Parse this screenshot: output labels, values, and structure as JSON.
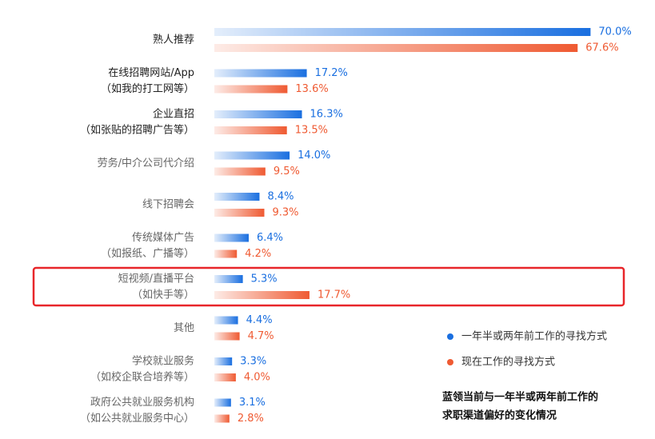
{
  "chart_data": {
    "type": "bar",
    "orientation": "horizontal",
    "title": [
      "蓝领当前与一年半或两年前工作的",
      "求职渠道偏好的变化情况"
    ],
    "categories": [
      [
        "熟人推荐"
      ],
      [
        "在线招聘网站/App",
        "（如我的打工网等）"
      ],
      [
        "企业直招",
        "（如张贴的招聘广告等）"
      ],
      [
        "劳务/中介公司代介绍"
      ],
      [
        "线下招聘会"
      ],
      [
        "传统媒体广告",
        "（如报纸、广播等）"
      ],
      [
        "短视频/直播平台",
        "（如快手等）"
      ],
      [
        "其他"
      ],
      [
        "学校就业服务",
        "（如校企联合培养等）"
      ],
      [
        "政府公共就业服务机构",
        "（如公共就业服务中心）"
      ]
    ],
    "series": [
      {
        "name": "一年半或两年前工作的寻找方式",
        "color": "#1a6fe0",
        "values": [
          70.0,
          17.2,
          16.3,
          14.0,
          8.4,
          6.4,
          5.3,
          4.4,
          3.3,
          3.1
        ],
        "value_labels": [
          "70.0%",
          "17.2%",
          "16.3%",
          "14.0%",
          "8.4%",
          "6.4%",
          "5.3%",
          "4.4%",
          "3.3%",
          "3.1%"
        ]
      },
      {
        "name": "现在工作的寻找方式",
        "color": "#ef5a32",
        "values": [
          67.6,
          13.6,
          13.5,
          9.5,
          9.3,
          4.2,
          17.7,
          4.7,
          4.0,
          2.8
        ],
        "value_labels": [
          "67.6%",
          "13.6%",
          "13.5%",
          "9.5%",
          "9.3%",
          "4.2%",
          "17.7%",
          "4.7%",
          "4.0%",
          "2.8%"
        ]
      }
    ],
    "highlight": 6
  }
}
